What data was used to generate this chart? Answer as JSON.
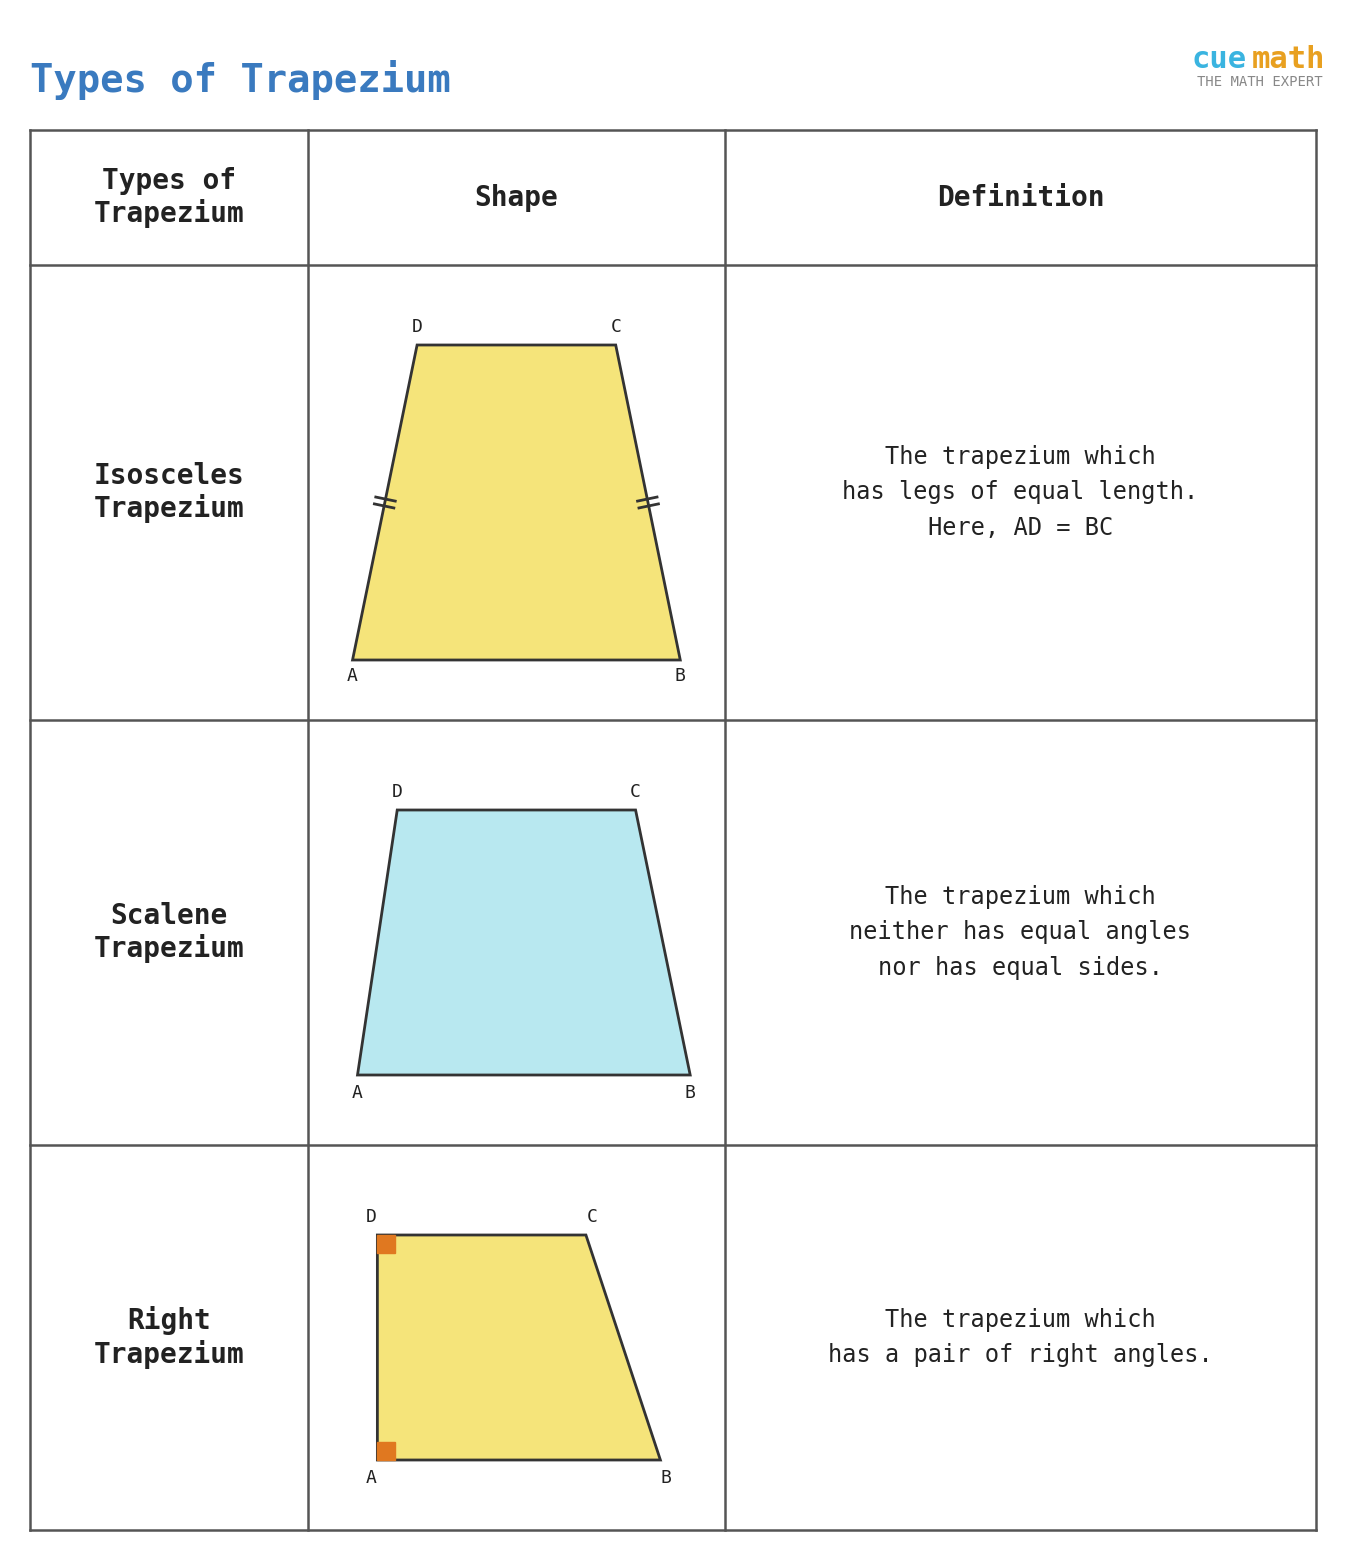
{
  "title": "Types of Trapezium",
  "title_color": "#3a7abf",
  "bg_color": "#ffffff",
  "table_border_color": "#555555",
  "header_texts": [
    "Types of\nTrapezium",
    "Shape",
    "Definition"
  ],
  "row1_type": "Isosceles\nTrapezium",
  "row1_def": "The trapezium which\nhas legs of equal length.\nHere, AD = BC",
  "row2_type": "Scalene\nTrapezium",
  "row2_def": "The trapezium which\nneither has equal angles\nnor has equal sides.",
  "row3_type": "Right\nTrapezium",
  "row3_def": "The trapezium which\nhas a pair of right angles.",
  "iso_color": "#f5e47a",
  "scalene_color": "#b8e8f0",
  "right_color": "#f5e47a",
  "trap_edge_color": "#333333",
  "right_angle_color": "#e07820",
  "text_color": "#222222",
  "font_family": "monospace"
}
